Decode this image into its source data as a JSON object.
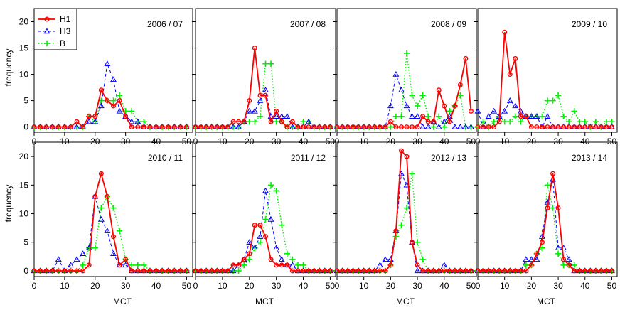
{
  "chart_data": {
    "type": "line",
    "xlabel": "MCT",
    "ylabel": "frequency",
    "xlim": [
      0,
      52
    ],
    "ylim": [
      -1,
      22.5
    ],
    "xticks": [
      0,
      10,
      20,
      30,
      40,
      50
    ],
    "yticks": [
      0,
      5,
      10,
      15,
      20
    ],
    "x": [
      0,
      2,
      4,
      6,
      8,
      10,
      12,
      14,
      16,
      18,
      20,
      22,
      24,
      26,
      28,
      30,
      32,
      34,
      36,
      38,
      40,
      42,
      44,
      46,
      48,
      50
    ],
    "legend": {
      "placement": "top-left of first panel",
      "entries": [
        {
          "name": "H1",
          "color": "#ff0000",
          "style": "solid",
          "marker": "circle"
        },
        {
          "name": "H3",
          "color": "#0000ff",
          "style": "dashed",
          "marker": "triangle"
        },
        {
          "name": "B",
          "color": "#00ee00",
          "style": "dotted",
          "marker": "plus"
        }
      ]
    },
    "panels": [
      {
        "title": "2006 / 07",
        "series": [
          {
            "name": "H1",
            "values": [
              0,
              0,
              0,
              0,
              0,
              0,
              0,
              1,
              0,
              2,
              2,
              7,
              5,
              4,
              5,
              2,
              0,
              0,
              0,
              0,
              0,
              0,
              0,
              0,
              0,
              0
            ]
          },
          {
            "name": "H3",
            "values": [
              0,
              0,
              0,
              0,
              0,
              0,
              0,
              0,
              0,
              1,
              1,
              4,
              12,
              9,
              3,
              2,
              1,
              1,
              0,
              0,
              0,
              0,
              0,
              0,
              0,
              0
            ]
          },
          {
            "name": "B",
            "values": [
              0,
              0,
              0,
              0,
              0,
              0,
              0,
              0,
              0,
              2,
              1,
              5,
              5,
              5,
              6,
              3,
              3,
              1,
              1,
              0,
              0,
              0,
              0,
              0,
              0,
              0
            ]
          }
        ]
      },
      {
        "title": "2007 / 08",
        "series": [
          {
            "name": "H1",
            "values": [
              0,
              0,
              0,
              0,
              0,
              0,
              0,
              1,
              1,
              1,
              5,
              15,
              6,
              6,
              1,
              3,
              1,
              0,
              1,
              0,
              0,
              0,
              0,
              0,
              0,
              0
            ]
          },
          {
            "name": "H3",
            "values": [
              0,
              0,
              0,
              0,
              0,
              0,
              0,
              0,
              0,
              1,
              3,
              3,
              5,
              7,
              2,
              2,
              2,
              2,
              0,
              0,
              0,
              1,
              0,
              0,
              0,
              0
            ]
          },
          {
            "name": "B",
            "values": [
              0,
              0,
              0,
              0,
              0,
              0,
              0,
              0,
              0,
              1,
              1,
              1,
              2,
              12,
              12,
              1,
              1,
              0,
              0,
              0,
              1,
              1,
              0,
              0,
              0,
              0
            ]
          }
        ]
      },
      {
        "title": "2008 / 09",
        "series": [
          {
            "name": "H1",
            "values": [
              0,
              0,
              0,
              0,
              0,
              0,
              0,
              0,
              0,
              0,
              1,
              0,
              0,
              0,
              0,
              0,
              2,
              1,
              1,
              7,
              4,
              1,
              4,
              8,
              13,
              3
            ]
          },
          {
            "name": "H3",
            "values": [
              0,
              0,
              0,
              0,
              0,
              0,
              0,
              0,
              0,
              0,
              4,
              10,
              7,
              4,
              2,
              2,
              0,
              0,
              1,
              0,
              1,
              2,
              0,
              0,
              0,
              0
            ]
          },
          {
            "name": "B",
            "values": [
              0,
              0,
              0,
              0,
              0,
              0,
              0,
              0,
              0,
              0,
              0,
              2,
              2,
              14,
              6,
              4,
              6,
              2,
              0,
              2,
              0,
              3,
              4,
              6,
              0,
              0
            ]
          }
        ]
      },
      {
        "title": "2009 / 10",
        "series": [
          {
            "name": "H1",
            "values": [
              0,
              0,
              0,
              0,
              1,
              18,
              10,
              13,
              2,
              2,
              0,
              0,
              0,
              0,
              0,
              0,
              0,
              0,
              0,
              0,
              0,
              0,
              0,
              0,
              0,
              0
            ]
          },
          {
            "name": "H3",
            "values": [
              3,
              0,
              2,
              3,
              2,
              3,
              5,
              4,
              3,
              2,
              2,
              2,
              0,
              2,
              0,
              0,
              0,
              0,
              0,
              0,
              0,
              0,
              0,
              0,
              0,
              0
            ]
          },
          {
            "name": "B",
            "values": [
              0,
              1,
              0,
              1,
              2,
              1,
              1,
              2,
              1,
              2,
              2,
              2,
              2,
              5,
              5,
              6,
              2,
              1,
              3,
              1,
              1,
              0,
              1,
              0,
              1,
              1
            ]
          }
        ]
      },
      {
        "title": "2010 / 11",
        "series": [
          {
            "name": "H1",
            "values": [
              0,
              0,
              0,
              0,
              0,
              0,
              0,
              0,
              0,
              1,
              13,
              17,
              13,
              6,
              1,
              2,
              0,
              0,
              0,
              0,
              0,
              0,
              0,
              0,
              0,
              0
            ]
          },
          {
            "name": "H3",
            "values": [
              0,
              0,
              0,
              0,
              2,
              0,
              1,
              2,
              3,
              4,
              13,
              9,
              7,
              3,
              1,
              1,
              0,
              0,
              0,
              0,
              0,
              0,
              0,
              0,
              0,
              0
            ]
          },
          {
            "name": "B",
            "values": [
              0,
              0,
              0,
              0,
              0,
              0,
              0,
              0,
              1,
              4,
              4,
              11,
              13,
              11,
              7,
              2,
              1,
              1,
              1,
              0,
              0,
              0,
              0,
              0,
              0,
              0
            ]
          }
        ]
      },
      {
        "title": "2011 / 12",
        "series": [
          {
            "name": "H1",
            "values": [
              0,
              0,
              0,
              0,
              0,
              0,
              0,
              1,
              1,
              2,
              3,
              8,
              8,
              6,
              2,
              1,
              1,
              1,
              0,
              0,
              0,
              0,
              0,
              0,
              0,
              0
            ]
          },
          {
            "name": "H3",
            "values": [
              0,
              0,
              0,
              0,
              0,
              0,
              0,
              0,
              1,
              2,
              5,
              4,
              6,
              14,
              9,
              4,
              2,
              1,
              1,
              0,
              0,
              0,
              0,
              0,
              0,
              0
            ]
          },
          {
            "name": "B",
            "values": [
              0,
              0,
              0,
              0,
              0,
              0,
              0,
              0,
              0,
              1,
              2,
              4,
              5,
              9,
              15,
              14,
              8,
              3,
              2,
              1,
              1,
              0,
              0,
              0,
              0,
              0
            ]
          }
        ]
      },
      {
        "title": "2012 / 13",
        "series": [
          {
            "name": "H1",
            "values": [
              0,
              0,
              0,
              0,
              0,
              0,
              0,
              0,
              0,
              0,
              1,
              7,
              21,
              20,
              5,
              1,
              0,
              0,
              0,
              0,
              0,
              0,
              0,
              0,
              0,
              0
            ]
          },
          {
            "name": "H3",
            "values": [
              0,
              0,
              0,
              0,
              0,
              0,
              0,
              0,
              1,
              2,
              2,
              7,
              17,
              15,
              5,
              0,
              0,
              0,
              0,
              0,
              1,
              0,
              0,
              0,
              0,
              0
            ]
          },
          {
            "name": "B",
            "values": [
              0,
              0,
              0,
              0,
              0,
              0,
              0,
              0,
              0,
              0,
              1,
              6,
              8,
              11,
              17,
              5,
              2,
              0,
              0,
              0,
              0,
              0,
              0,
              0,
              0,
              0
            ]
          }
        ]
      },
      {
        "title": "2013 / 14",
        "series": [
          {
            "name": "H1",
            "values": [
              0,
              0,
              0,
              0,
              0,
              0,
              0,
              0,
              0,
              0,
              1,
              3,
              5,
              11,
              17,
              11,
              2,
              1,
              0,
              0,
              0,
              0,
              0,
              0,
              0,
              0
            ]
          },
          {
            "name": "H3",
            "values": [
              0,
              0,
              0,
              0,
              0,
              0,
              0,
              0,
              0,
              2,
              2,
              2,
              6,
              12,
              16,
              4,
              4,
              2,
              0,
              0,
              0,
              0,
              0,
              0,
              0,
              0
            ]
          },
          {
            "name": "B",
            "values": [
              0,
              0,
              0,
              0,
              0,
              0,
              0,
              0,
              0,
              1,
              1,
              3,
              4,
              15,
              11,
              3,
              1,
              1,
              1,
              0,
              0,
              0,
              0,
              0,
              0,
              0
            ]
          }
        ]
      }
    ]
  }
}
